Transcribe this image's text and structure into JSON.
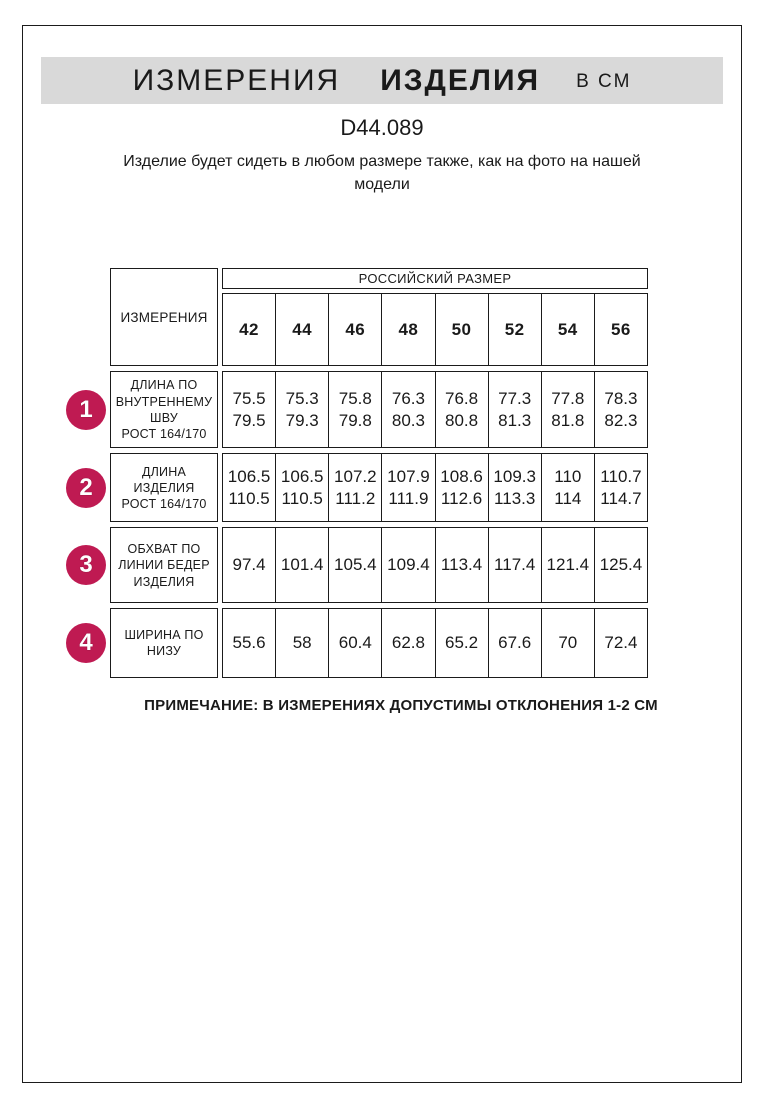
{
  "page": {
    "title_word1": "ИЗМЕРЕНИЯ",
    "title_word2": "ИЗДЕЛИЯ",
    "title_units": "В СМ",
    "article_code": "D44.089",
    "fit_note": "Изделие будет сидеть в любом размере также, как на фото на нашей модели",
    "footnote": "ПРИМЕЧАНИЕ: В ИЗМЕРЕНИЯХ ДОПУСТИМЫ ОТКЛОНЕНИЯ 1-2 СМ"
  },
  "colors": {
    "badge": "#bf1a52",
    "band_bg": "#d9d9d9",
    "border": "#1b1b1b"
  },
  "table": {
    "corner_header": "ИЗМЕРЕНИЯ",
    "group_header": "РОССИЙСКИЙ РАЗМЕР",
    "sizes": [
      "42",
      "44",
      "46",
      "48",
      "50",
      "52",
      "54",
      "56"
    ],
    "rows": [
      {
        "num": "1",
        "label_lines": [
          "ДЛИНА ПО",
          "ВНУТРЕННЕМУ",
          "ШВУ",
          "РОСТ 164/170"
        ],
        "values": [
          [
            "75.5",
            "79.5"
          ],
          [
            "75.3",
            "79.3"
          ],
          [
            "75.8",
            "79.8"
          ],
          [
            "76.3",
            "80.3"
          ],
          [
            "76.8",
            "80.8"
          ],
          [
            "77.3",
            "81.3"
          ],
          [
            "77.8",
            "81.8"
          ],
          [
            "78.3",
            "82.3"
          ]
        ]
      },
      {
        "num": "2",
        "label_lines": [
          "ДЛИНА",
          "ИЗДЕЛИЯ",
          "РОСТ 164/170"
        ],
        "values": [
          [
            "106.5",
            "110.5"
          ],
          [
            "106.5",
            "110.5"
          ],
          [
            "107.2",
            "111.2"
          ],
          [
            "107.9",
            "111.9"
          ],
          [
            "108.6",
            "112.6"
          ],
          [
            "109.3",
            "113.3"
          ],
          [
            "110",
            "114"
          ],
          [
            "110.7",
            "114.7"
          ]
        ]
      },
      {
        "num": "3",
        "label_lines": [
          "ОБХВАТ ПО",
          "ЛИНИИ БЕДЕР",
          "ИЗДЕЛИЯ"
        ],
        "values": [
          [
            "97.4"
          ],
          [
            "101.4"
          ],
          [
            "105.4"
          ],
          [
            "109.4"
          ],
          [
            "113.4"
          ],
          [
            "117.4"
          ],
          [
            "121.4"
          ],
          [
            "125.4"
          ]
        ]
      },
      {
        "num": "4",
        "label_lines": [
          "ШИРИНА ПО",
          "НИЗУ"
        ],
        "values": [
          [
            "55.6"
          ],
          [
            "58"
          ],
          [
            "60.4"
          ],
          [
            "62.8"
          ],
          [
            "65.2"
          ],
          [
            "67.6"
          ],
          [
            "70"
          ],
          [
            "72.4"
          ]
        ]
      }
    ]
  }
}
